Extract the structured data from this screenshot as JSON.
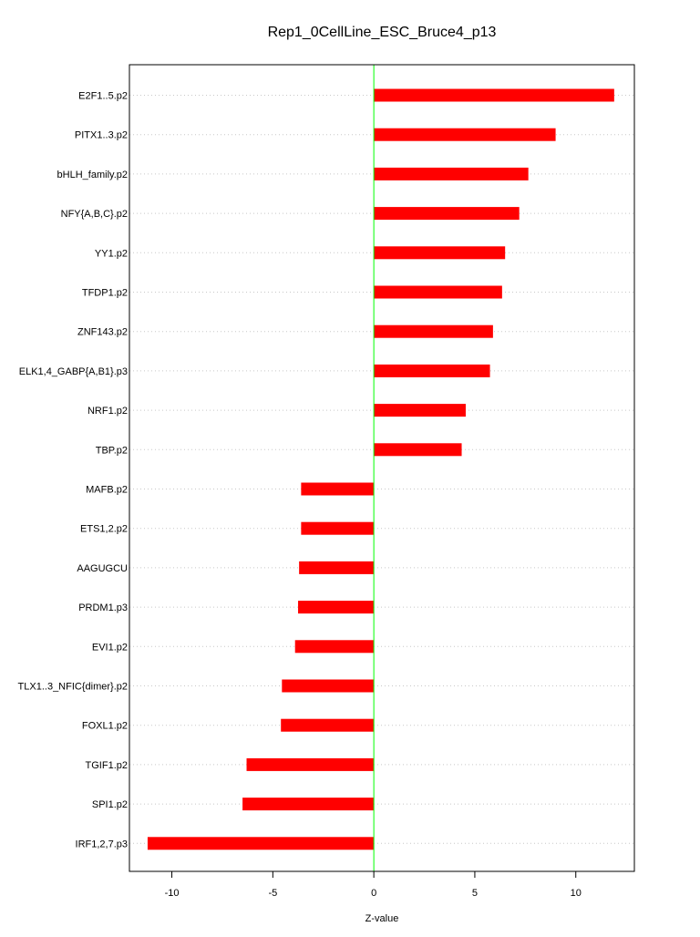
{
  "chart_data": {
    "type": "bar",
    "orientation": "horizontal",
    "title": "Rep1_0CellLine_ESC_Bruce4_p13",
    "xlabel": "Z-value",
    "ylabel": "",
    "xlim": [
      -12.1,
      12.9
    ],
    "xticks": [
      -10,
      -5,
      0,
      5,
      10
    ],
    "xtick_labels": [
      "-10",
      "-5",
      "0",
      "5",
      "10"
    ],
    "grid": "horizontal dotted",
    "zero_line_color": "#00ff00",
    "bar_color": "#ff0000",
    "categories": [
      "E2F1..5.p2",
      "PITX1..3.p2",
      "bHLH_family.p2",
      "NFY{A,B,C}.p2",
      "YY1.p2",
      "TFDP1.p2",
      "ZNF143.p2",
      "ELK1,4_GABP{A,B1}.p3",
      "NRF1.p2",
      "TBP.p2",
      "MAFB.p2",
      "ETS1,2.p2",
      "AAGUGCU",
      "PRDM1.p3",
      "EVI1.p2",
      "TLX1..3_NFIC{dimer}.p2",
      "FOXL1.p2",
      "TGIF1.p2",
      "SPI1.p2",
      "IRF1,2,7.p3"
    ],
    "values": [
      11.9,
      9.0,
      7.65,
      7.2,
      6.5,
      6.35,
      5.9,
      5.75,
      4.55,
      4.35,
      -3.6,
      -3.6,
      -3.7,
      -3.75,
      -3.9,
      -4.55,
      -4.6,
      -6.3,
      -6.5,
      -11.2
    ]
  }
}
